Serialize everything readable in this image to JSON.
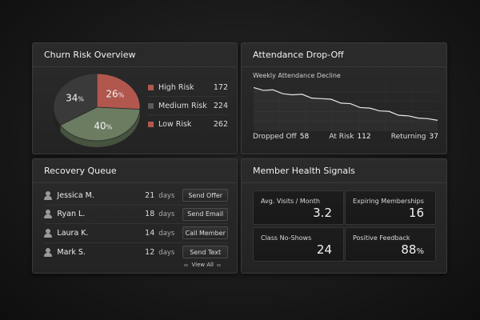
{
  "churn": {
    "title": "Churn Risk Overview",
    "segments": [
      {
        "label": "High Risk",
        "value": "172",
        "percent": "26",
        "color": "#b1574e"
      },
      {
        "label": "Medium Risk",
        "value": "224",
        "percent": "34",
        "color": "#3a3a3a"
      },
      {
        "label": "Low Risk",
        "value": "262",
        "percent": "40",
        "color": "#6b7c61"
      }
    ],
    "percent_sign": "%"
  },
  "attendance": {
    "title": "Attendance Drop-Off",
    "chart_title": "Weekly Attendance Decline",
    "stats": [
      {
        "label": "Dropped Off",
        "value": "58"
      },
      {
        "label": "At Risk",
        "value": "112"
      },
      {
        "label": "Returning",
        "value": "37"
      }
    ]
  },
  "recovery": {
    "title": "Recovery Queue",
    "days_unit": "days",
    "members": [
      {
        "name": "Jessica M.",
        "days": "21",
        "action": "Send Offer"
      },
      {
        "name": "Ryan L.",
        "days": "18",
        "action": "Send Email"
      },
      {
        "name": "Laura K.",
        "days": "14",
        "action": "Call Member"
      },
      {
        "name": "Mark S.",
        "days": "12",
        "action": "Send Text"
      }
    ],
    "view_all": "View All"
  },
  "health": {
    "title": "Member Health Signals",
    "metrics": [
      {
        "label": "Avg. Visits / Month",
        "value": "3.2"
      },
      {
        "label": "Expiring Memberships",
        "value": "16"
      },
      {
        "label": "Class No-Shows",
        "value": "24"
      },
      {
        "label": "Positive Feedback",
        "value": "88",
        "unit": "%"
      }
    ]
  },
  "chart_data": {
    "type": "line",
    "title": "Weekly Attendance Decline",
    "x": [
      0,
      1,
      2,
      3,
      4,
      5,
      6,
      7,
      8,
      9,
      10,
      11,
      12,
      13,
      14,
      15,
      16,
      17,
      18,
      19
    ],
    "values": [
      100,
      95,
      96,
      89,
      87,
      88,
      81,
      80,
      79,
      72,
      71,
      64,
      63,
      58,
      57,
      50,
      49,
      45,
      44,
      41
    ],
    "grid": true
  }
}
